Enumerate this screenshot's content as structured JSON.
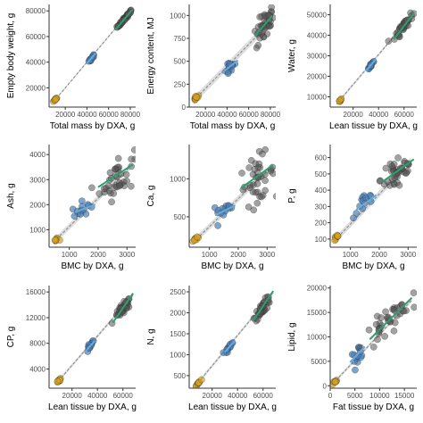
{
  "colors": {
    "points": "#555555",
    "small_cluster": "#d4a020",
    "mid_cluster": "#4a7fb5",
    "high_cluster": "#2aa06e",
    "ci_band": "#d3d3d3",
    "overall_line": "#888888",
    "green_line": "#2aa06e",
    "blue_line": "#6aaad8"
  },
  "chart_data": [
    {
      "type": "scatter",
      "xlabel": "Total mass by DXA, g",
      "ylabel": "Empty body weight, g",
      "xlim": [
        5000,
        85000
      ],
      "ylim": [
        5000,
        85000
      ],
      "xticks": [
        20000,
        40000,
        60000,
        80000
      ],
      "xtick_labels": [
        "20000",
        "40000",
        "60000",
        "80000"
      ],
      "yticks": [
        20000,
        40000,
        60000,
        80000
      ],
      "ytick_labels": [
        "20000",
        "40000",
        "60000",
        "80000"
      ],
      "clusters": [
        {
          "name": "small",
          "cx": 11500,
          "cy": 11500,
          "sx": 1200,
          "sy": 1000,
          "n": 10,
          "corr": 0.95
        },
        {
          "name": "mid",
          "cx": 44000,
          "cy": 43000,
          "sx": 1800,
          "sy": 1800,
          "n": 14,
          "corr": 0.95
        },
        {
          "name": "high",
          "cx": 75000,
          "cy": 74000,
          "sx": 3500,
          "sy": 3500,
          "n": 40,
          "corr": 0.98
        }
      ],
      "overall_line": [
        [
          9000,
          9000
        ],
        [
          82000,
          82000
        ]
      ],
      "green_line": [
        [
          66000,
          65000
        ],
        [
          82000,
          81000
        ]
      ],
      "blue_line": [
        [
          40000,
          39000
        ],
        [
          48000,
          47000
        ]
      ],
      "band_width": 800
    },
    {
      "type": "scatter",
      "xlabel": "Total mass by DXA, g",
      "ylabel": "Energy content, MJ",
      "xlim": [
        5000,
        85000
      ],
      "ylim": [
        0,
        1120
      ],
      "xticks": [
        20000,
        40000,
        60000,
        80000
      ],
      "xtick_labels": [
        "20000",
        "40000",
        "60000",
        "80000"
      ],
      "yticks": [
        0,
        250,
        500,
        750,
        1000
      ],
      "ytick_labels": [
        "0",
        "250",
        "500",
        "750",
        "1000"
      ],
      "clusters": [
        {
          "name": "small",
          "cx": 11500,
          "cy": 100,
          "sx": 1200,
          "sy": 15,
          "n": 10,
          "corr": 0.8
        },
        {
          "name": "mid",
          "cx": 42000,
          "cy": 430,
          "sx": 2500,
          "sy": 50,
          "n": 14,
          "corr": 0.6
        },
        {
          "name": "high",
          "cx": 75000,
          "cy": 880,
          "sx": 4000,
          "sy": 100,
          "n": 40,
          "corr": 0.6
        }
      ],
      "overall_line": [
        [
          9000,
          70
        ],
        [
          82000,
          950
        ]
      ],
      "green_line": [
        [
          66000,
          780
        ],
        [
          82000,
          1000
        ]
      ],
      "blue_line": [
        [
          35000,
          370
        ],
        [
          50000,
          510
        ]
      ],
      "band_width": 40
    },
    {
      "type": "scatter",
      "xlabel": "Lean tissue by DXA, g",
      "ylabel": "Water, g",
      "xlim": [
        2000,
        70000
      ],
      "ylim": [
        5000,
        55000
      ],
      "xticks": [
        20000,
        40000,
        60000
      ],
      "xtick_labels": [
        "20000",
        "40000",
        "60000"
      ],
      "yticks": [
        10000,
        20000,
        30000,
        40000,
        50000
      ],
      "ytick_labels": [
        "10000",
        "20000",
        "30000",
        "40000",
        "50000"
      ],
      "clusters": [
        {
          "name": "small",
          "cx": 9500,
          "cy": 8000,
          "sx": 900,
          "sy": 700,
          "n": 10,
          "corr": 0.95
        },
        {
          "name": "mid",
          "cx": 34000,
          "cy": 25500,
          "sx": 1800,
          "sy": 1400,
          "n": 14,
          "corr": 0.9
        },
        {
          "name": "high",
          "cx": 60000,
          "cy": 45000,
          "sx": 3500,
          "sy": 3000,
          "n": 40,
          "corr": 0.9
        }
      ],
      "overall_line": [
        [
          7000,
          6500
        ],
        [
          68000,
          51000
        ]
      ],
      "green_line": [
        [
          52000,
          38000
        ],
        [
          68000,
          51000
        ]
      ],
      "blue_line": [
        [
          30000,
          22500
        ],
        [
          38000,
          28500
        ]
      ],
      "band_width": 700
    },
    {
      "type": "scatter",
      "xlabel": "BMC by DXA, g",
      "ylabel": "Ash, g",
      "xlim": [
        300,
        3300
      ],
      "ylim": [
        300,
        4400
      ],
      "xticks": [
        1000,
        2000,
        3000
      ],
      "xtick_labels": [
        "1000",
        "2000",
        "3000"
      ],
      "yticks": [
        1000,
        2000,
        3000,
        4000
      ],
      "ytick_labels": [
        "1000",
        "2000",
        "3000",
        "4000"
      ],
      "clusters": [
        {
          "name": "small",
          "cx": 530,
          "cy": 580,
          "sx": 50,
          "sy": 40,
          "n": 8,
          "corr": 0.6
        },
        {
          "name": "mid",
          "cx": 1450,
          "cy": 1800,
          "sx": 180,
          "sy": 180,
          "n": 14,
          "corr": 0.5
        },
        {
          "name": "high",
          "cx": 2650,
          "cy": 3100,
          "sx": 300,
          "sy": 450,
          "n": 40,
          "corr": 0.4
        }
      ],
      "overall_line": [
        [
          450,
          500
        ],
        [
          3100,
          3500
        ]
      ],
      "green_line": [
        [
          2000,
          2700
        ],
        [
          3200,
          3600
        ]
      ],
      "blue_line": [
        [
          1200,
          1700
        ],
        [
          1900,
          2000
        ]
      ],
      "band_width": 120
    },
    {
      "type": "scatter",
      "xlabel": "BMC by DXA, g",
      "ylabel": "Ca, g",
      "xlim": [
        300,
        3300
      ],
      "ylim": [
        100,
        1450
      ],
      "xticks": [
        1000,
        2000,
        3000
      ],
      "xtick_labels": [
        "1000",
        "2000",
        "3000"
      ],
      "yticks": [
        500,
        1000
      ],
      "ytick_labels": [
        "500",
        "1000"
      ],
      "clusters": [
        {
          "name": "small",
          "cx": 530,
          "cy": 200,
          "sx": 50,
          "sy": 15,
          "n": 8,
          "corr": 0.6
        },
        {
          "name": "mid",
          "cx": 1500,
          "cy": 590,
          "sx": 200,
          "sy": 60,
          "n": 14,
          "corr": 0.5
        },
        {
          "name": "high",
          "cx": 2650,
          "cy": 1000,
          "sx": 300,
          "sy": 160,
          "n": 40,
          "corr": 0.4
        }
      ],
      "overall_line": [
        [
          450,
          170
        ],
        [
          3100,
          1140
        ]
      ],
      "green_line": [
        [
          2100,
          880
        ],
        [
          3200,
          1180
        ]
      ],
      "blue_line": [
        [
          1200,
          520
        ],
        [
          1900,
          650
        ]
      ],
      "band_width": 40
    },
    {
      "type": "scatter",
      "xlabel": "BMC by DXA, g",
      "ylabel": "P, g",
      "xlim": [
        300,
        3300
      ],
      "ylim": [
        50,
        680
      ],
      "xticks": [
        1000,
        2000,
        3000
      ],
      "xtick_labels": [
        "1000",
        "2000",
        "3000"
      ],
      "yticks": [
        100,
        200,
        300,
        400,
        500,
        600
      ],
      "ytick_labels": [
        "100",
        "200",
        "300",
        "400",
        "500",
        "600"
      ],
      "clusters": [
        {
          "name": "small",
          "cx": 530,
          "cy": 110,
          "sx": 50,
          "sy": 8,
          "n": 8,
          "corr": 0.6
        },
        {
          "name": "mid",
          "cx": 1500,
          "cy": 320,
          "sx": 200,
          "sy": 35,
          "n": 14,
          "corr": 0.5
        },
        {
          "name": "high",
          "cx": 2650,
          "cy": 520,
          "sx": 300,
          "sy": 70,
          "n": 40,
          "corr": 0.4
        }
      ],
      "overall_line": [
        [
          450,
          90
        ],
        [
          3100,
          580
        ]
      ],
      "green_line": [
        [
          2100,
          450
        ],
        [
          3200,
          590
        ]
      ],
      "blue_line": [
        [
          1200,
          280
        ],
        [
          1900,
          370
        ]
      ],
      "band_width": 20
    },
    {
      "type": "scatter",
      "xlabel": "Lean tissue by DXA, g",
      "ylabel": "CP, g",
      "xlim": [
        2000,
        70000
      ],
      "ylim": [
        1000,
        17000
      ],
      "xticks": [
        20000,
        40000,
        60000
      ],
      "xtick_labels": [
        "20000",
        "40000",
        "60000"
      ],
      "yticks": [
        4000,
        8000,
        12000,
        16000
      ],
      "ytick_labels": [
        "4000",
        "8000",
        "12000",
        "16000"
      ],
      "clusters": [
        {
          "name": "small",
          "cx": 9500,
          "cy": 2100,
          "sx": 900,
          "sy": 200,
          "n": 10,
          "corr": 0.9
        },
        {
          "name": "mid",
          "cx": 34000,
          "cy": 7500,
          "sx": 1800,
          "sy": 500,
          "n": 14,
          "corr": 0.85
        },
        {
          "name": "high",
          "cx": 60000,
          "cy": 13300,
          "sx": 3200,
          "sy": 800,
          "n": 40,
          "corr": 0.85
        }
      ],
      "overall_line": [
        [
          7000,
          1600
        ],
        [
          68000,
          15500
        ]
      ],
      "green_line": [
        [
          52000,
          11200
        ],
        [
          68000,
          15800
        ]
      ],
      "blue_line": [
        [
          30000,
          6600
        ],
        [
          38000,
          8400
        ]
      ],
      "band_width": 250
    },
    {
      "type": "scatter",
      "xlabel": "Lean tissue by DXA, g",
      "ylabel": "N, g",
      "xlim": [
        2000,
        70000
      ],
      "ylim": [
        200,
        2650
      ],
      "xticks": [
        20000,
        40000,
        60000
      ],
      "xtick_labels": [
        "20000",
        "40000",
        "60000"
      ],
      "yticks": [
        500,
        1000,
        1500,
        2000,
        2500
      ],
      "ytick_labels": [
        "500",
        "1000",
        "1500",
        "2000",
        "2500"
      ],
      "clusters": [
        {
          "name": "small",
          "cx": 9500,
          "cy": 330,
          "sx": 900,
          "sy": 30,
          "n": 10,
          "corr": 0.9
        },
        {
          "name": "mid",
          "cx": 34000,
          "cy": 1200,
          "sx": 1800,
          "sy": 80,
          "n": 14,
          "corr": 0.85
        },
        {
          "name": "high",
          "cx": 60000,
          "cy": 2130,
          "sx": 3200,
          "sy": 130,
          "n": 40,
          "corr": 0.85
        }
      ],
      "overall_line": [
        [
          7000,
          260
        ],
        [
          68000,
          2480
        ]
      ],
      "green_line": [
        [
          52000,
          1800
        ],
        [
          68000,
          2520
        ]
      ],
      "blue_line": [
        [
          30000,
          1060
        ],
        [
          38000,
          1340
        ]
      ],
      "band_width": 40
    },
    {
      "type": "scatter",
      "xlabel": "Fat tissue by DXA, g",
      "ylabel": "Lipid, g",
      "xlim": [
        0,
        17500
      ],
      "ylim": [
        -500,
        20500
      ],
      "xticks": [
        0,
        5000,
        10000,
        15000
      ],
      "xtick_labels": [
        "0",
        "5000",
        "10000",
        "15000"
      ],
      "yticks": [
        0,
        5000,
        10000,
        15000,
        20000
      ],
      "ytick_labels": [
        "0",
        "5000",
        "10000",
        "15000",
        "20000"
      ],
      "clusters": [
        {
          "name": "small",
          "cx": 900,
          "cy": 800,
          "sx": 250,
          "sy": 250,
          "n": 8,
          "corr": 0.6
        },
        {
          "name": "mid",
          "cx": 5500,
          "cy": 6500,
          "sx": 800,
          "sy": 1000,
          "n": 14,
          "corr": 0.7
        },
        {
          "name": "high",
          "cx": 11500,
          "cy": 13000,
          "sx": 2300,
          "sy": 2700,
          "n": 40,
          "corr": 0.85
        }
      ],
      "overall_line": [
        [
          500,
          400
        ],
        [
          16500,
          17500
        ]
      ],
      "green_line": [
        [
          8000,
          9500
        ],
        [
          16500,
          18000
        ]
      ],
      "blue_line": [
        [
          4000,
          4800
        ],
        [
          7000,
          8000
        ]
      ],
      "band_width": 350
    }
  ]
}
